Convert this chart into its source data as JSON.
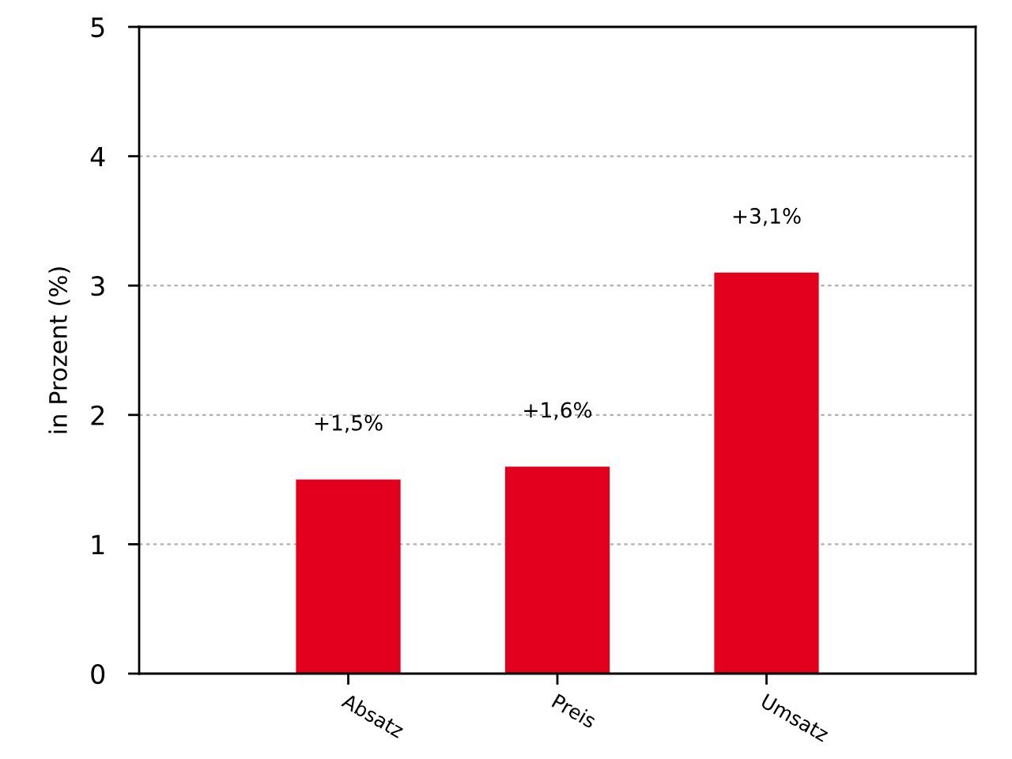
{
  "chart_data": {
    "type": "bar",
    "ylabel": "in Prozent (%)",
    "categories": [
      "Absatz",
      "Preis",
      "Umsatz"
    ],
    "values": [
      1.5,
      1.6,
      3.1
    ],
    "value_labels": [
      "+1,5%",
      "+1,6%",
      "+3,1%"
    ],
    "color": "#e3001f",
    "ylim": [
      0,
      5
    ],
    "yticks": [
      0,
      1,
      2,
      3,
      4,
      5
    ],
    "grid": "y",
    "legend": false
  }
}
